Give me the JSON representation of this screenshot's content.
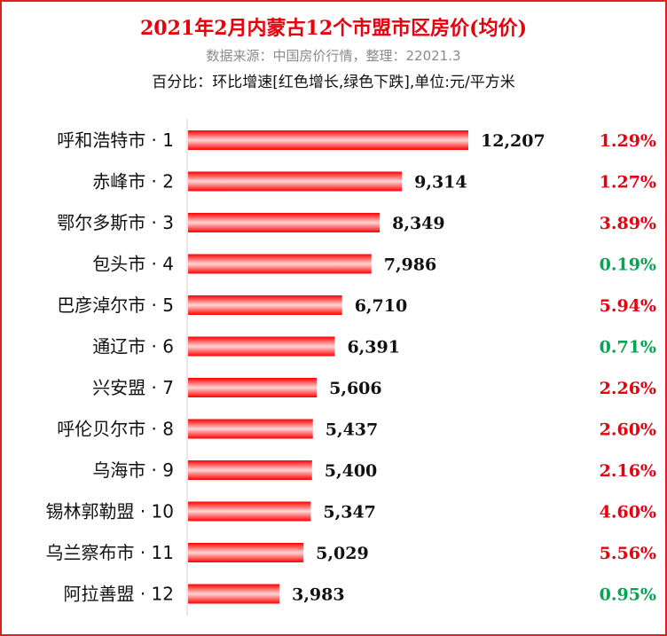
{
  "title": "2021年2月内蒙古12个市盟市区房价(均价)",
  "subtitle": "数据来源：中国房价行情，整理：22021.3",
  "note": "百分比：环比增速[红色增长,绿色下跌],单位:元/平方米",
  "colors": {
    "bar": "#ff0000",
    "up": "#e8000b",
    "down": "#00a650",
    "frame": "#e02020"
  },
  "chart_data": {
    "type": "bar",
    "orientation": "horizontal",
    "categories": [
      "呼和浩特市 · 1",
      "赤峰市 · 2",
      "鄂尔多斯市 · 3",
      "包头市 · 4",
      "巴彦淖尔市 · 5",
      "通辽市 · 6",
      "兴安盟 · 7",
      "呼伦贝尔市 · 8",
      "乌海市 · 9",
      "锡林郭勒盟 · 10",
      "乌兰察布市 · 11",
      "阿拉善盟 · 12"
    ],
    "values": [
      12207,
      9314,
      8349,
      7986,
      6710,
      6391,
      5606,
      5437,
      5400,
      5347,
      5029,
      3983
    ],
    "value_labels": [
      "12,207",
      "9,314",
      "8,349",
      "7,986",
      "6,710",
      "6,391",
      "5,606",
      "5,437",
      "5,400",
      "5,347",
      "5,029",
      "3,983"
    ],
    "change_labels": [
      "1.29%",
      "1.27%",
      "3.89%",
      "0.19%",
      "5.94%",
      "0.71%",
      "2.26%",
      "2.60%",
      "2.16%",
      "4.60%",
      "5.56%",
      "0.95%"
    ],
    "change_direction": [
      "up",
      "up",
      "up",
      "down",
      "up",
      "down",
      "up",
      "up",
      "up",
      "up",
      "up",
      "down"
    ],
    "xlim": [
      0,
      12207
    ],
    "grid": false,
    "legend": "none"
  }
}
